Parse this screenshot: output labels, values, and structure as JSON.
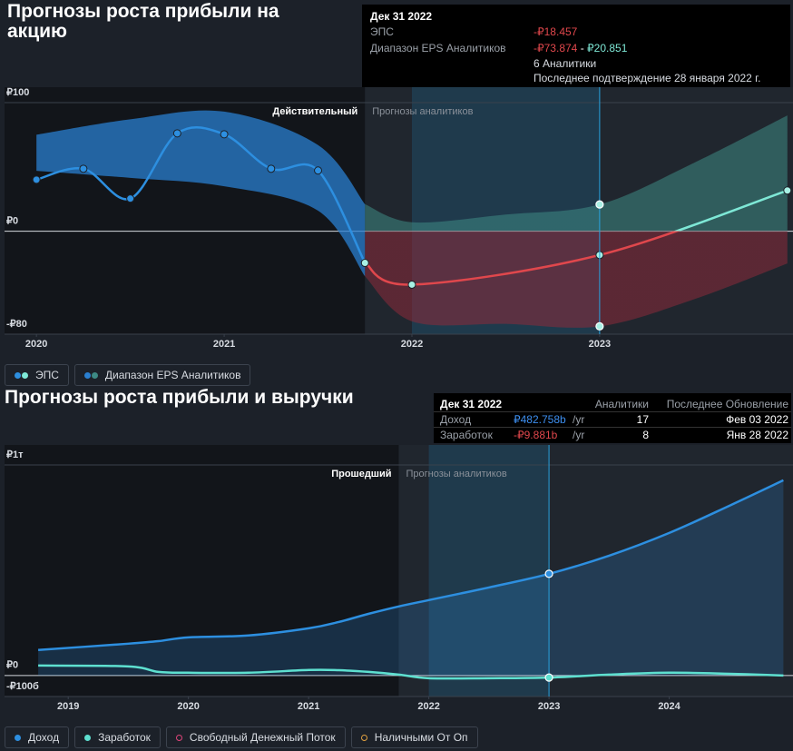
{
  "chart_data": [
    {
      "type": "line",
      "title": "Прогнозы роста прибыли на акцию",
      "xlim": [
        2019.83,
        2024.03
      ],
      "xticks": [
        2020,
        2021,
        2022,
        2023
      ],
      "ylim": [
        -80,
        100
      ],
      "yticks": [
        {
          "value": 100,
          "label": "₽100"
        },
        {
          "value": 0,
          "label": "₽0"
        },
        {
          "value": -80,
          "label": "-₽80"
        }
      ],
      "grid": true,
      "markers": true,
      "forecast_start": 2021.75,
      "crosshair": 2023,
      "period_labels": [
        "Действительный",
        "Прогнозы аналитиков"
      ],
      "series": [
        {
          "name": "ЭПС",
          "color": "#2d8fe0",
          "forecast_colors": [
            "#7ee8d6",
            "#e0474c"
          ],
          "x": [
            2020,
            2020.25,
            2020.5,
            2020.75,
            2021,
            2021.25,
            2021.5,
            2021.75,
            2022,
            2023,
            2024
          ],
          "values": [
            40.1,
            48.6,
            25.4,
            76.1,
            75.4,
            48.6,
            47.2,
            -24.6,
            -41.5,
            -18.457,
            31.7
          ]
        }
      ],
      "band": {
        "name": "Диапазон EPS Аналитиков",
        "color": "#2a7fd0",
        "forecast_colors": [
          "#3d8a84",
          "#8c2a3a"
        ],
        "x": [
          2020,
          2020.5,
          2021,
          2021.5,
          2021.75,
          2022,
          2022.5,
          2023,
          2023.5,
          2024
        ],
        "upper": [
          75,
          87,
          93,
          67,
          21,
          7,
          13,
          20.851,
          53,
          90
        ],
        "lower": [
          47,
          41.5,
          35,
          16,
          -35,
          -70,
          -72,
          -73.874,
          -53,
          -25
        ]
      },
      "tooltip": {
        "date": "Дек 31 2022",
        "rows": [
          {
            "label": "ЭПС",
            "value": "-₽18.457"
          },
          {
            "label": "Диапазон EPS Аналитиков",
            "low": "-₽73.874",
            "sep": "-",
            "high": "₽20.851"
          }
        ],
        "analysts": "6 Аналитики",
        "confirmed": "Последнее подтверждение 28 января 2022 г."
      }
    },
    {
      "type": "line",
      "title": "Прогнозы роста прибыли и выручки",
      "xlim": [
        2018.47,
        2025.03
      ],
      "xticks": [
        2019,
        2020,
        2021,
        2022,
        2023,
        2024
      ],
      "ylim": [
        -100,
        1000
      ],
      "yticks": [
        {
          "value": 1000,
          "label": "₽1т"
        },
        {
          "value": 0,
          "label": "₽0"
        },
        {
          "value": -100,
          "label": "-₽100б"
        }
      ],
      "grid": true,
      "markers": false,
      "forecast_start": 2021.75,
      "crosshair": 2023,
      "period_labels": [
        "Прошедший",
        "Прогнозы аналитиков"
      ],
      "x": [
        2018.75,
        2019.5,
        2019.75,
        2020,
        2020.5,
        2021,
        2021.25,
        2021.5,
        2021.75,
        2022,
        2022.5,
        2023,
        2023.5,
        2024,
        2024.5,
        2024.95
      ],
      "series": [
        {
          "name": "Доход",
          "color": "#2d8fe0",
          "fill": true,
          "values": [
            121,
            151,
            163,
            181,
            190,
            224,
            254,
            293,
            328,
            358,
            418,
            482.758,
            569,
            677,
            806,
            927
          ]
        },
        {
          "name": "Заработок",
          "color": "#5ee0d0",
          "values": [
            47,
            43,
            17,
            13,
            13,
            26,
            25,
            17,
            4,
            -13,
            -13,
            -9.881,
            4,
            13,
            8,
            0
          ]
        },
        {
          "name": "Свободный Денежный Поток",
          "color": "#e0457b",
          "values": [
            null,
            null,
            null,
            null,
            null,
            null,
            null,
            null,
            null,
            null,
            null,
            null,
            null,
            null,
            null,
            null
          ]
        },
        {
          "name": "Наличными От Оп",
          "color": "#e0a040",
          "values": [
            null,
            null,
            null,
            null,
            null,
            null,
            null,
            null,
            null,
            null,
            null,
            null,
            null,
            null,
            null,
            null
          ]
        }
      ],
      "tooltip": {
        "date": "Дек 31 2022",
        "headers": [
          "Аналитики",
          "Последнее Обновление"
        ],
        "rows": [
          {
            "label": "Доход",
            "value": "₽482.758b",
            "unit": "/yr",
            "analysts": 17,
            "updated": "Фев 03 2022",
            "color": "#3d8ff0"
          },
          {
            "label": "Заработок",
            "value": "-₽9.881b",
            "unit": "/yr",
            "analysts": 8,
            "updated": "Янв 28 2022",
            "color": "#e0474c"
          }
        ]
      }
    }
  ]
}
